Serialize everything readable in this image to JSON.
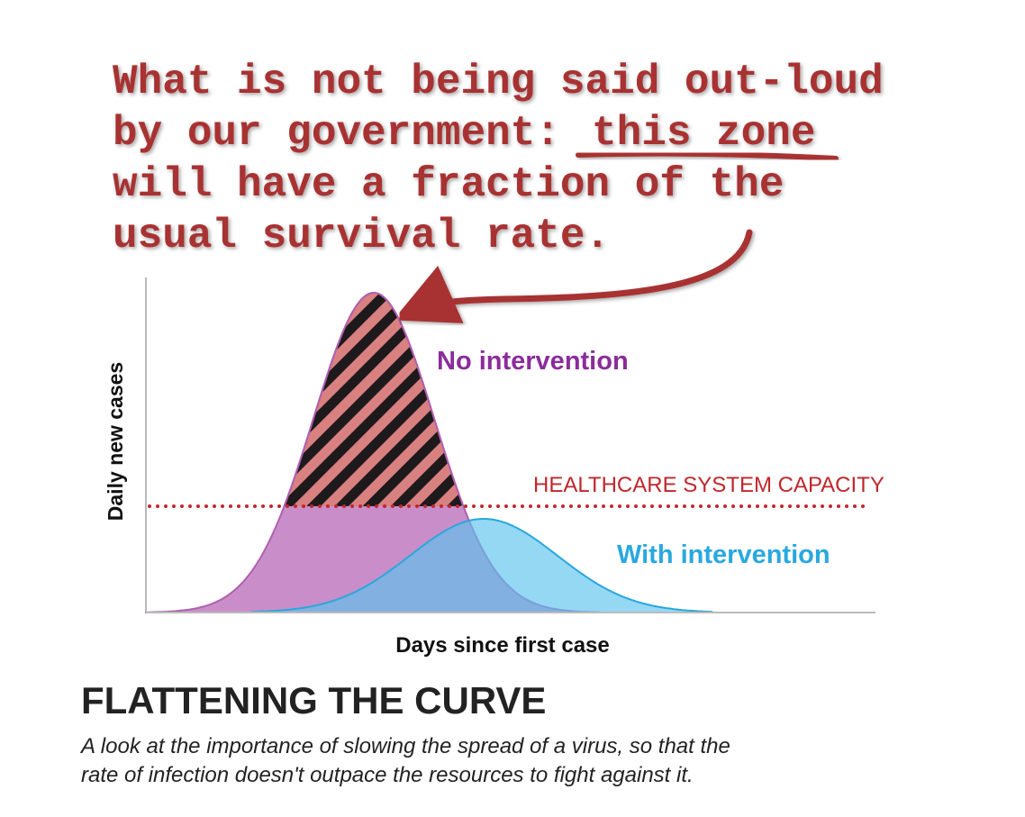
{
  "annotation": {
    "line1": "What is not being said out-loud",
    "line2": "by our government:",
    "line2_highlight": "this zone",
    "line3": "will have a fraction of the",
    "line4": "usual survival rate."
  },
  "chart": {
    "y_label": "Daily new cases",
    "x_label": "Days since first case",
    "no_intervention": "No intervention",
    "with_intervention": "With intervention",
    "capacity": "HEALTHCARE SYSTEM CAPACITY"
  },
  "title": "FLATTENING THE CURVE",
  "subtitle": {
    "line1": "A look at the importance of slowing the spread of a virus, so that the",
    "line2": "rate of infection doesn't outpace the resources to fight against it."
  }
}
